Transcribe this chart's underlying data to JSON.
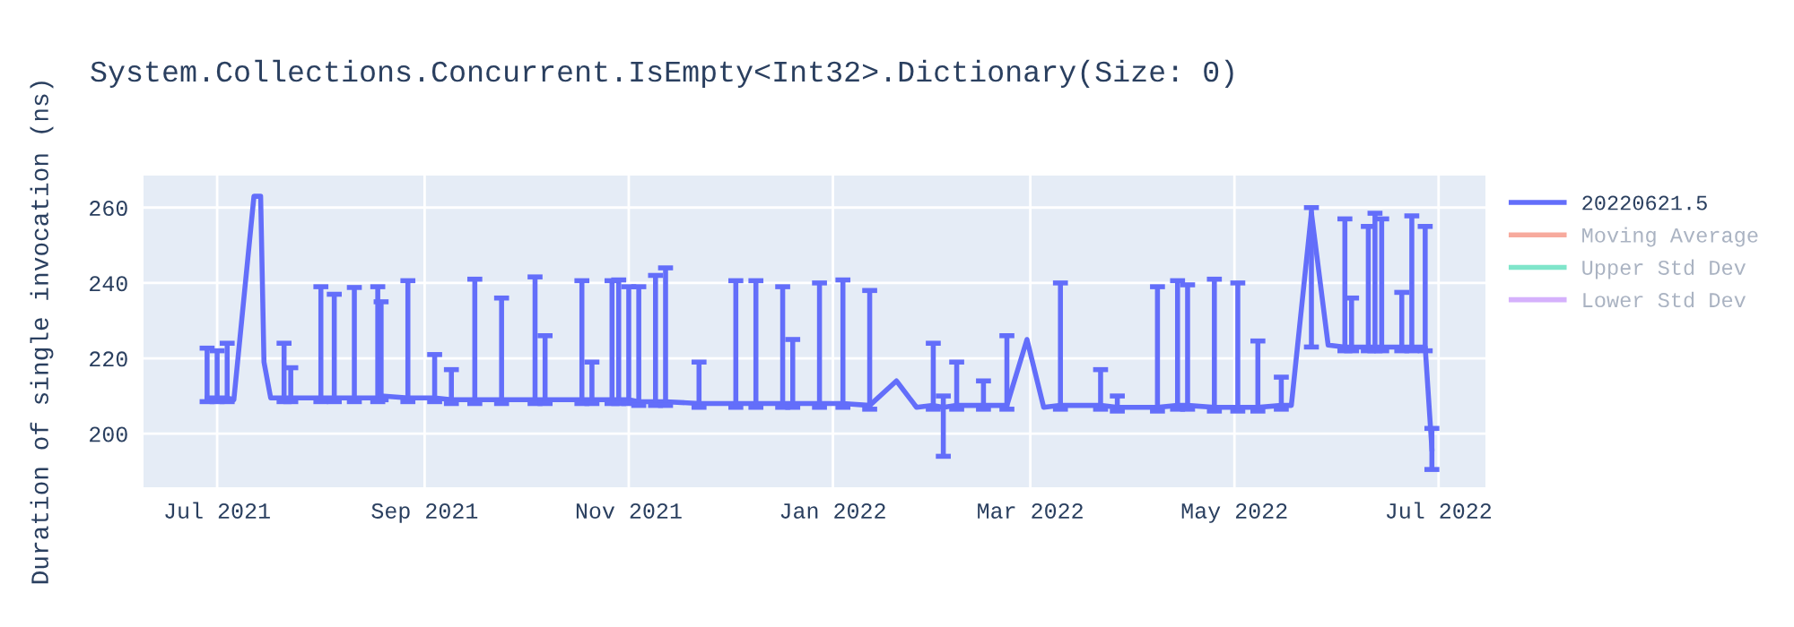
{
  "chart_data": {
    "type": "line",
    "title": "System.Collections.Concurrent.IsEmpty<Int32>.Dictionary(Size: 0)",
    "ylabel": "Duration of single invocation (ns)",
    "x": [
      "2021-06-28",
      "2021-07-01",
      "2021-07-04",
      "2021-07-06",
      "2021-07-12",
      "2021-07-14",
      "2021-07-15",
      "2021-07-17",
      "2021-07-21",
      "2021-07-23",
      "2021-08-01",
      "2021-08-05",
      "2021-08-11",
      "2021-08-18",
      "2021-08-19",
      "2021-08-27",
      "2021-09-04",
      "2021-09-09",
      "2021-09-16",
      "2021-09-24",
      "2021-10-04",
      "2021-10-07",
      "2021-10-18",
      "2021-10-21",
      "2021-10-27",
      "2021-10-29",
      "2021-11-01",
      "2021-11-04",
      "2021-11-09",
      "2021-11-12",
      "2021-11-22",
      "2021-12-03",
      "2021-12-09",
      "2021-12-17",
      "2021-12-20",
      "2021-12-28",
      "2022-01-04",
      "2022-01-12",
      "2022-01-20",
      "2022-01-26",
      "2022-01-31",
      "2022-02-03",
      "2022-02-07",
      "2022-02-15",
      "2022-02-22",
      "2022-02-28",
      "2022-03-05",
      "2022-03-10",
      "2022-03-22",
      "2022-03-27",
      "2022-04-03",
      "2022-04-08",
      "2022-04-14",
      "2022-04-17",
      "2022-04-25",
      "2022-05-02",
      "2022-05-08",
      "2022-05-15",
      "2022-05-18",
      "2022-05-24",
      "2022-05-29",
      "2022-06-03",
      "2022-06-05",
      "2022-06-10",
      "2022-06-12",
      "2022-06-14",
      "2022-06-20",
      "2022-06-23",
      "2022-06-27",
      "2022-06-29"
    ],
    "series": [
      {
        "name": "20220621.5",
        "color": "#636efa",
        "values": [
          209.5,
          209.5,
          209.5,
          209,
          263,
          263,
          219,
          209.5,
          209.5,
          209.5,
          209.5,
          209.5,
          209.5,
          209.5,
          210,
          209.5,
          209.5,
          209,
          209,
          209,
          209,
          209,
          209,
          209,
          209,
          209,
          209,
          208.5,
          208.5,
          208.5,
          208,
          208,
          208,
          208,
          208,
          208,
          208,
          207.5,
          214,
          207,
          207.5,
          207,
          207.5,
          207.5,
          207.5,
          225,
          207,
          207.5,
          207.5,
          207,
          207,
          207,
          207.5,
          207.5,
          207,
          207,
          207,
          207.5,
          207.5,
          258.6,
          223.5,
          223,
          223,
          223,
          223,
          223,
          223,
          223,
          223,
          196
        ],
        "errors": [
          [
            208.5,
            222.7
          ],
          [
            208.5,
            222
          ],
          [
            208.5,
            224
          ],
          null,
          null,
          null,
          null,
          null,
          [
            208.5,
            224
          ],
          [
            208.5,
            217.5
          ],
          [
            208.5,
            239
          ],
          [
            208.5,
            237
          ],
          [
            208.5,
            238.8
          ],
          [
            208.5,
            239
          ],
          [
            209,
            235
          ],
          [
            208.5,
            240.6
          ],
          [
            208.5,
            221
          ],
          [
            208,
            217
          ],
          [
            208,
            241
          ],
          [
            208,
            236
          ],
          [
            208,
            241.6
          ],
          [
            208,
            226
          ],
          [
            208,
            240.6
          ],
          [
            208,
            219
          ],
          [
            208,
            240.6
          ],
          [
            208,
            240.8
          ],
          [
            208,
            239
          ],
          [
            207.5,
            239
          ],
          [
            207.5,
            242
          ],
          [
            207.5,
            244
          ],
          [
            207,
            219
          ],
          [
            207,
            240.6
          ],
          [
            207,
            240.6
          ],
          [
            207,
            239
          ],
          [
            207,
            225
          ],
          [
            207,
            240
          ],
          [
            207,
            240.8
          ],
          [
            206.5,
            238
          ],
          null,
          null,
          [
            206.5,
            224
          ],
          [
            194,
            210
          ],
          [
            206.5,
            219
          ],
          [
            206.5,
            214
          ],
          [
            206.5,
            226
          ],
          null,
          null,
          [
            206.5,
            240
          ],
          [
            206.5,
            217
          ],
          [
            206,
            210
          ],
          null,
          [
            206,
            239
          ],
          [
            206.5,
            240.6
          ],
          [
            206.5,
            239.5
          ],
          [
            206,
            241
          ],
          [
            206,
            240
          ],
          [
            206,
            224.6
          ],
          [
            206.5,
            215
          ],
          null,
          [
            223,
            260
          ],
          null,
          [
            222,
            257
          ],
          [
            222,
            236
          ],
          [
            222,
            255
          ],
          [
            222,
            258.5
          ],
          [
            222,
            257
          ],
          [
            222,
            237.5
          ],
          [
            222,
            257.8
          ],
          [
            222,
            255
          ],
          [
            190.5,
            201.4
          ]
        ]
      },
      {
        "name": "Moving Average",
        "color": "#ef553b",
        "values": [
          null,
          null,
          null,
          null,
          null,
          null,
          null,
          null,
          null,
          null,
          null,
          null,
          null,
          null,
          null,
          null,
          null,
          null,
          null,
          null,
          null,
          null,
          null,
          null,
          null,
          null,
          null,
          null,
          null,
          null,
          null,
          null,
          null,
          null,
          null,
          null,
          null,
          null,
          null,
          null,
          null,
          null,
          null,
          null,
          null,
          null,
          null,
          null,
          null,
          null,
          null,
          null,
          null,
          null,
          null,
          null,
          null,
          null,
          null,
          null,
          null,
          null,
          null,
          null,
          null,
          null,
          null,
          null,
          null,
          null
        ]
      },
      {
        "name": "Upper Std Dev",
        "color": "#00cc96",
        "values": [
          null,
          null,
          null,
          null,
          null,
          null,
          null,
          null,
          null,
          null,
          null,
          null,
          null,
          null,
          null,
          null,
          null,
          null,
          null,
          null,
          null,
          null,
          null,
          null,
          null,
          null,
          null,
          null,
          null,
          null,
          null,
          null,
          null,
          null,
          null,
          null,
          null,
          null,
          null,
          null,
          null,
          null,
          null,
          null,
          null,
          null,
          null,
          null,
          null,
          null,
          null,
          null,
          null,
          null,
          null,
          null,
          null,
          null,
          null,
          null,
          null,
          null,
          null,
          null,
          null,
          null,
          null,
          null,
          null,
          null
        ]
      },
      {
        "name": "Lower Std Dev",
        "color": "#ab63fa",
        "values": [
          null,
          null,
          null,
          null,
          null,
          null,
          null,
          null,
          null,
          null,
          null,
          null,
          null,
          null,
          null,
          null,
          null,
          null,
          null,
          null,
          null,
          null,
          null,
          null,
          null,
          null,
          null,
          null,
          null,
          null,
          null,
          null,
          null,
          null,
          null,
          null,
          null,
          null,
          null,
          null,
          null,
          null,
          null,
          null,
          null,
          null,
          null,
          null,
          null,
          null,
          null,
          null,
          null,
          null,
          null,
          null,
          null,
          null,
          null,
          null,
          null,
          null,
          null,
          null,
          null,
          null,
          null,
          null,
          null,
          null
        ]
      }
    ],
    "xlim": [
      "2021-06-09",
      "2022-07-15"
    ],
    "xticks": [
      {
        "value": "2021-07-01",
        "label": "Jul 2021"
      },
      {
        "value": "2021-09-01",
        "label": "Sep 2021"
      },
      {
        "value": "2021-11-01",
        "label": "Nov 2021"
      },
      {
        "value": "2022-01-01",
        "label": "Jan 2022"
      },
      {
        "value": "2022-03-01",
        "label": "Mar 2022"
      },
      {
        "value": "2022-05-01",
        "label": "May 2022"
      },
      {
        "value": "2022-07-01",
        "label": "Jul 2022"
      }
    ],
    "ylim": [
      185.8,
      268.5
    ],
    "yticks": [
      200,
      220,
      240,
      260
    ],
    "grid": true,
    "legend": "right"
  }
}
